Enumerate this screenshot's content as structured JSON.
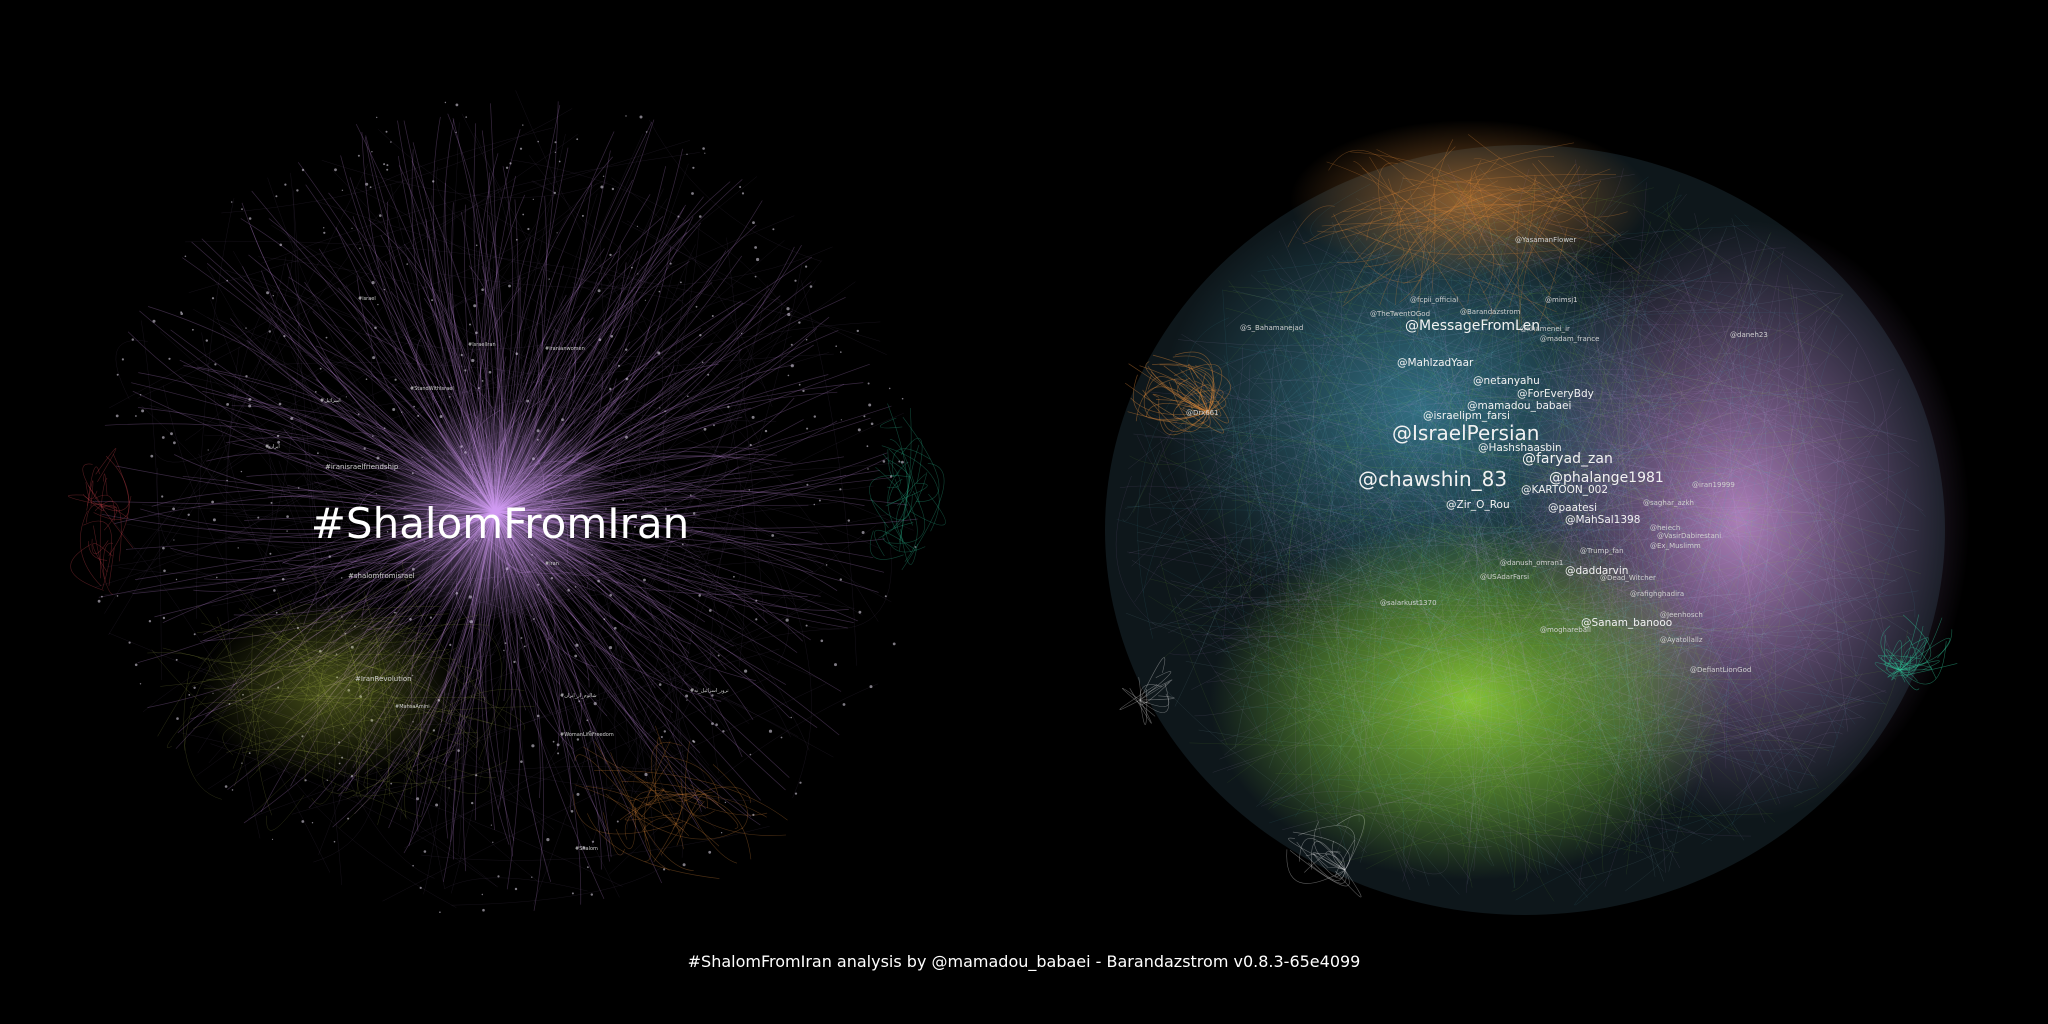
{
  "footer": "#ShalomFromIran analysis by @mamadou_babaei - Barandazstrom v0.8.3-65e4099",
  "colors": {
    "background": "#000000",
    "purple": "#c98fe6",
    "green": "#8fd13a",
    "cyan": "#4ab3c9",
    "orange": "#d9873a",
    "teal": "#2fc79a",
    "red": "#c9404a",
    "white": "#ffffff"
  },
  "hashtag_graph": {
    "main_label": "#ShalomFromIran",
    "labels": [
      {
        "text": "#iranisraelfriendship",
        "size": "small"
      },
      {
        "text": "#shalomfromisrael",
        "size": "small"
      },
      {
        "text": "#IsraelIran",
        "size": "tiny"
      },
      {
        "text": "#iranianwomen",
        "size": "tiny"
      },
      {
        "text": "#StandWithIsrael",
        "size": "tiny"
      },
      {
        "text": "#IranRevolution",
        "size": "tiny"
      },
      {
        "text": "#MahsaAmini",
        "size": "tiny"
      },
      {
        "text": "#اسرائیل",
        "size": "tiny"
      },
      {
        "text": "#ایران",
        "size": "tiny"
      },
      {
        "text": "#israel",
        "size": "small"
      },
      {
        "text": "#iran",
        "size": "tiny"
      },
      {
        "text": "#شالوم_از_ایران",
        "size": "tiny"
      },
      {
        "text": "#ترور_اسرائیل_نه",
        "size": "tiny"
      },
      {
        "text": "#WomanLifeFreedom",
        "size": "tiny"
      },
      {
        "text": "#Shalom",
        "size": "tiny"
      }
    ]
  },
  "user_graph": {
    "labels": [
      {
        "text": "@chawshin_83",
        "size": "xl"
      },
      {
        "text": "@IsraelPersian",
        "size": "xl"
      },
      {
        "text": "@faryad_zan",
        "size": "l"
      },
      {
        "text": "@phalange1981",
        "size": "l"
      },
      {
        "text": "@MessageFromLen",
        "size": "l"
      },
      {
        "text": "@Zir_O_Rou",
        "size": "m"
      },
      {
        "text": "@netanyahu",
        "size": "m"
      },
      {
        "text": "@ForEveryBdy",
        "size": "m"
      },
      {
        "text": "@mamadou_babaei",
        "size": "m"
      },
      {
        "text": "@MahlzadYaar",
        "size": "m"
      },
      {
        "text": "@israelipm_farsi",
        "size": "m"
      },
      {
        "text": "@Hashshaasbin",
        "size": "m"
      },
      {
        "text": "@KARTOON_002",
        "size": "m"
      },
      {
        "text": "@paatesi",
        "size": "m"
      },
      {
        "text": "@MahSal1398",
        "size": "m"
      },
      {
        "text": "@daddarvin",
        "size": "m"
      },
      {
        "text": "@Sanam_banooo",
        "size": "m"
      },
      {
        "text": "@moghareball",
        "size": "s"
      },
      {
        "text": "@Drx661",
        "size": "s"
      },
      {
        "text": "@S_Bahamanejad",
        "size": "s"
      },
      {
        "text": "@fcpii_official",
        "size": "s"
      },
      {
        "text": "@mimsj1",
        "size": "s"
      },
      {
        "text": "@khamenei_ir",
        "size": "s"
      },
      {
        "text": "@madam_france",
        "size": "s"
      },
      {
        "text": "@TheTwentOGod",
        "size": "s"
      },
      {
        "text": "@Barandazstrom",
        "size": "s"
      },
      {
        "text": "@YasamanFlower",
        "size": "s"
      },
      {
        "text": "@heiech",
        "size": "s"
      },
      {
        "text": "@VasirDabirestani",
        "size": "s"
      },
      {
        "text": "@Ex_Muslimm",
        "size": "s"
      },
      {
        "text": "@saghar_azkh",
        "size": "s"
      },
      {
        "text": "@iran19999",
        "size": "s"
      },
      {
        "text": "@danush_omran1",
        "size": "s"
      },
      {
        "text": "@USAdarFarsi",
        "size": "s"
      },
      {
        "text": "@Trump_fan",
        "size": "s"
      },
      {
        "text": "@Dead_Witcher",
        "size": "s"
      },
      {
        "text": "@rafighghadira",
        "size": "s"
      },
      {
        "text": "@salarkust1370",
        "size": "s"
      },
      {
        "text": "@Jeenhosch",
        "size": "s"
      },
      {
        "text": "@Ayatollallz",
        "size": "s"
      },
      {
        "text": "@DefiantLionGod",
        "size": "s"
      },
      {
        "text": "@daneh23",
        "size": "s"
      }
    ]
  }
}
